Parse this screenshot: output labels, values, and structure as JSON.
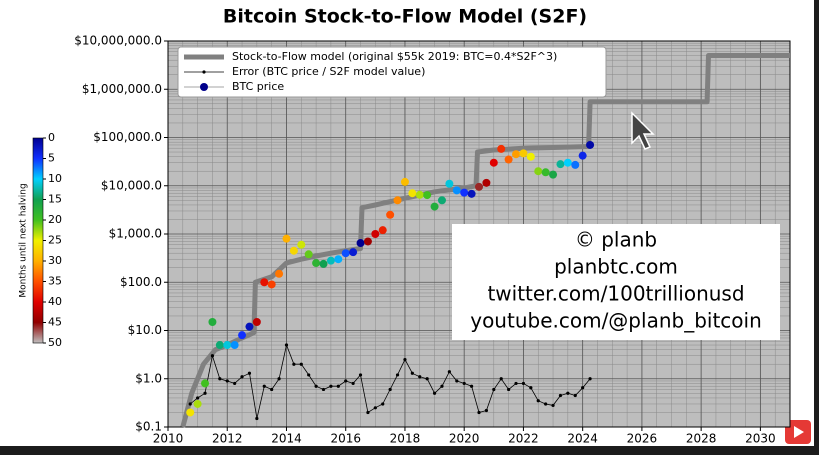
{
  "chart_data": {
    "type": "line",
    "title": "Bitcoin Stock-to-Flow Model (S2F)",
    "log_y": true,
    "grid": true,
    "legend_loc": "upper left",
    "xlim": [
      2010,
      2031
    ],
    "xticks": [
      2010,
      2012,
      2014,
      2016,
      2018,
      2020,
      2022,
      2024,
      2026,
      2028,
      2030
    ],
    "ylim": [
      0.1,
      10000000
    ],
    "yticks": [
      {
        "value": 0.1,
        "label": "$0.1"
      },
      {
        "value": 1,
        "label": "$1.0"
      },
      {
        "value": 10,
        "label": "$10.0"
      },
      {
        "value": 100,
        "label": "$100.0"
      },
      {
        "value": 1000,
        "label": "$1,000.0"
      },
      {
        "value": 10000,
        "label": "$10,000.0"
      },
      {
        "value": 100000,
        "label": "$100,000.0"
      },
      {
        "value": 1000000,
        "label": "$1,000,000.0"
      },
      {
        "value": 10000000,
        "label": "$10,000,000.0"
      }
    ],
    "series": [
      {
        "name": "Stock-to-Flow model (original $55k 2019:  BTC=0.4*S2F^3)",
        "color": "#808080",
        "style": "thick-line",
        "x": [
          2010.5,
          2010.8,
          2011.2,
          2011.6,
          2012.0,
          2012.5,
          2012.9,
          2012.95,
          2013.5,
          2014.0,
          2014.5,
          2015.0,
          2015.5,
          2016.0,
          2016.5,
          2016.55,
          2017.0,
          2018.0,
          2019.0,
          2020.0,
          2020.4,
          2020.45,
          2021.0,
          2022.0,
          2023.0,
          2024.2,
          2024.25,
          2028.2,
          2028.25,
          2031
        ],
        "values": [
          0.1,
          0.5,
          2,
          4,
          5,
          7,
          9,
          100,
          130,
          250,
          300,
          350,
          400,
          450,
          500,
          3500,
          4000,
          5500,
          7500,
          9000,
          10000,
          50000,
          55000,
          60000,
          62000,
          65000,
          550000,
          550000,
          5000000,
          5000000
        ]
      },
      {
        "name": "Error (BTC price / S2F model value)",
        "color": "#000000",
        "style": "line-dots",
        "x": [
          2010.75,
          2011.0,
          2011.25,
          2011.5,
          2011.75,
          2012.0,
          2012.25,
          2012.5,
          2012.75,
          2013.0,
          2013.25,
          2013.5,
          2013.75,
          2014.0,
          2014.25,
          2014.5,
          2014.75,
          2015.0,
          2015.25,
          2015.5,
          2015.75,
          2016.0,
          2016.25,
          2016.5,
          2016.75,
          2017.0,
          2017.25,
          2017.5,
          2017.75,
          2018.0,
          2018.25,
          2018.5,
          2018.75,
          2019.0,
          2019.25,
          2019.5,
          2019.75,
          2020.0,
          2020.25,
          2020.5,
          2020.75,
          2021.0,
          2021.25,
          2021.5,
          2021.75,
          2022.0,
          2022.25,
          2022.5,
          2022.75,
          2023.0,
          2023.25,
          2023.5,
          2023.75,
          2024.0,
          2024.25
        ],
        "values": [
          0.3,
          0.4,
          0.5,
          3,
          1,
          0.9,
          0.8,
          1.1,
          1.3,
          0.15,
          0.7,
          0.6,
          1,
          5,
          2,
          2,
          1.2,
          0.7,
          0.6,
          0.7,
          0.7,
          0.9,
          0.8,
          1.2,
          0.2,
          0.25,
          0.3,
          0.6,
          1.2,
          2.5,
          1.3,
          1.1,
          1.0,
          0.5,
          0.7,
          1.4,
          0.9,
          0.8,
          0.7,
          0.2,
          0.22,
          0.6,
          1.0,
          0.6,
          0.8,
          0.8,
          0.65,
          0.35,
          0.3,
          0.28,
          0.45,
          0.5,
          0.45,
          0.65,
          1.0
        ]
      },
      {
        "name": "BTC price",
        "color": "#00008b",
        "style": "colored-dots",
        "x": [
          2010.75,
          2011.0,
          2011.25,
          2011.5,
          2011.75,
          2012.0,
          2012.25,
          2012.5,
          2012.75,
          2013.0,
          2013.25,
          2013.5,
          2013.75,
          2014.0,
          2014.25,
          2014.5,
          2014.75,
          2015.0,
          2015.25,
          2015.5,
          2015.75,
          2016.0,
          2016.25,
          2016.5,
          2016.75,
          2017.0,
          2017.25,
          2017.5,
          2017.75,
          2018.0,
          2018.25,
          2018.5,
          2018.75,
          2019.0,
          2019.25,
          2019.5,
          2019.75,
          2020.0,
          2020.25,
          2020.5,
          2020.75,
          2021.0,
          2021.25,
          2021.5,
          2021.75,
          2022.0,
          2022.25,
          2022.5,
          2022.75,
          2023.0,
          2023.25,
          2023.5,
          2023.75,
          2024.0,
          2024.25
        ],
        "values": [
          0.2,
          0.3,
          0.8,
          15,
          5,
          5,
          5,
          8,
          12,
          15,
          100,
          90,
          150,
          800,
          450,
          600,
          380,
          250,
          240,
          280,
          300,
          400,
          420,
          650,
          700,
          1000,
          1200,
          2500,
          5000,
          12000,
          7000,
          6500,
          6400,
          3700,
          5000,
          11000,
          8000,
          7200,
          6800,
          9500,
          11500,
          30000,
          58000,
          35000,
          45000,
          47000,
          40000,
          20000,
          19000,
          17000,
          28000,
          30000,
          27000,
          42000,
          70000
        ],
        "color_values": [
          26,
          23,
          20,
          17,
          14,
          11,
          8,
          5,
          2,
          42,
          39,
          36,
          33,
          30,
          27,
          24,
          21,
          18,
          15,
          12,
          9,
          6,
          3,
          0,
          44,
          41,
          38,
          35,
          32,
          29,
          26,
          23,
          20,
          17,
          14,
          11,
          8,
          5,
          2,
          46,
          43,
          40,
          37,
          34,
          31,
          28,
          25,
          22,
          19,
          16,
          13,
          10,
          7,
          4,
          1
        ]
      }
    ],
    "colorbar": {
      "label": "Months until next halving",
      "lim": [
        0,
        50
      ],
      "ticks": [
        0,
        5,
        10,
        15,
        20,
        25,
        30,
        35,
        40,
        45,
        50
      ],
      "colors": [
        "#000090",
        "#1030ff",
        "#00d0ff",
        "#10a050",
        "#40c020",
        "#f0f000",
        "#ffb000",
        "#ff5000",
        "#e00000",
        "#900000",
        "#c0c0c0"
      ]
    },
    "annotations": [
      "© planb",
      "planbtc.com",
      "twitter.com/100trillionusd",
      "youtube.com/@planb_bitcoin"
    ]
  }
}
